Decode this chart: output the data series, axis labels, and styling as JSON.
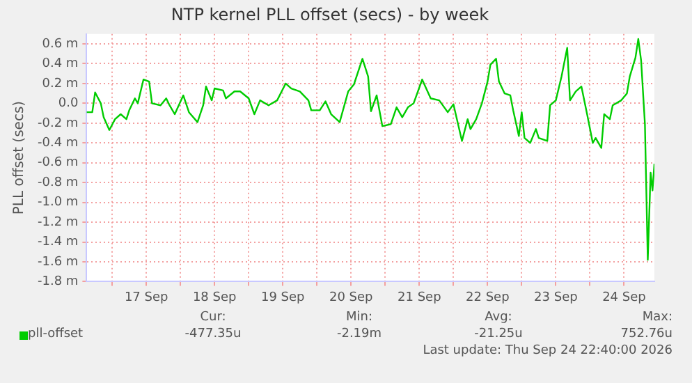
{
  "chart_data": {
    "type": "line",
    "title": "NTP kernel PLL offset (secs) - by week",
    "ylabel": "PLL offset (secs)",
    "xlim": [
      "2026-09-16T15:00",
      "2026-09-24T22:40"
    ],
    "xticks": [
      {
        "value": "2026-09-17T00:00",
        "label": null
      },
      {
        "value": "2026-09-17T12:00",
        "label": "17 Sep"
      },
      {
        "value": "2026-09-18T00:00",
        "label": null
      },
      {
        "value": "2026-09-18T12:00",
        "label": "18 Sep"
      },
      {
        "value": "2026-09-19T00:00",
        "label": null
      },
      {
        "value": "2026-09-19T12:00",
        "label": "19 Sep"
      },
      {
        "value": "2026-09-20T00:00",
        "label": null
      },
      {
        "value": "2026-09-20T12:00",
        "label": "20 Sep"
      },
      {
        "value": "2026-09-21T00:00",
        "label": null
      },
      {
        "value": "2026-09-21T12:00",
        "label": "21 Sep"
      },
      {
        "value": "2026-09-22T00:00",
        "label": null
      },
      {
        "value": "2026-09-22T12:00",
        "label": "22 Sep"
      },
      {
        "value": "2026-09-23T00:00",
        "label": null
      },
      {
        "value": "2026-09-23T12:00",
        "label": "23 Sep"
      },
      {
        "value": "2026-09-24T00:00",
        "label": null
      },
      {
        "value": "2026-09-24T12:00",
        "label": "24 Sep"
      }
    ],
    "ylim": [
      -1.8,
      0.7
    ],
    "yticks": [
      {
        "value": 0.6,
        "label": "0.6 m"
      },
      {
        "value": 0.4,
        "label": "0.4 m"
      },
      {
        "value": 0.2,
        "label": "0.2 m"
      },
      {
        "value": 0,
        "label": "0.0"
      },
      {
        "value": -0.2,
        "label": "-0.2 m"
      },
      {
        "value": -0.4,
        "label": "-0.4 m"
      },
      {
        "value": -0.6,
        "label": "-0.6 m"
      },
      {
        "value": -0.8,
        "label": "-0.8 m"
      },
      {
        "value": -1.0,
        "label": "-1.0 m"
      },
      {
        "value": -1.2,
        "label": "-1.2 m"
      },
      {
        "value": -1.4,
        "label": "-1.4 m"
      },
      {
        "value": -1.6,
        "label": "-1.6 m"
      },
      {
        "value": -1.8,
        "label": "-1.8 m"
      }
    ],
    "grid": true,
    "legend": "bottom",
    "marker": "none",
    "annotations": [
      "Cur:",
      "Min:",
      "Avg:",
      "Max:",
      "-477.35u",
      "-2.19m",
      "-21.25u",
      "752.76u",
      "Last update: Thu Sep 24 22:40:00 2026"
    ],
    "series": [
      {
        "name": "pll-offset",
        "color": "#00cc00",
        "x": [
          "2026-09-16T15:00",
          "2026-09-16T17:00",
          "2026-09-16T18:00",
          "2026-09-16T20:00",
          "2026-09-16T21:00",
          "2026-09-16T23:00",
          "2026-09-17T01:00",
          "2026-09-17T03:00",
          "2026-09-17T05:00",
          "2026-09-17T06:00",
          "2026-09-17T08:00",
          "2026-09-17T09:00",
          "2026-09-17T11:00",
          "2026-09-17T13:00",
          "2026-09-17T14:00",
          "2026-09-17T17:00",
          "2026-09-17T19:00",
          "2026-09-17T20:00",
          "2026-09-17T22:00",
          "2026-09-18T01:00",
          "2026-09-18T03:00",
          "2026-09-18T06:00",
          "2026-09-18T08:00",
          "2026-09-18T09:00",
          "2026-09-18T11:00",
          "2026-09-18T12:00",
          "2026-09-18T15:00",
          "2026-09-18T16:00",
          "2026-09-18T19:00",
          "2026-09-18T21:00",
          "2026-09-19T00:00",
          "2026-09-19T02:00",
          "2026-09-19T04:00",
          "2026-09-19T07:00",
          "2026-09-19T10:00",
          "2026-09-19T13:00",
          "2026-09-19T15:00",
          "2026-09-19T18:00",
          "2026-09-19T21:00",
          "2026-09-19T22:00",
          "2026-09-20T01:00",
          "2026-09-20T03:00",
          "2026-09-20T05:00",
          "2026-09-20T08:00",
          "2026-09-20T11:00",
          "2026-09-20T13:00",
          "2026-09-20T16:00",
          "2026-09-20T18:00",
          "2026-09-20T19:00",
          "2026-09-20T21:00",
          "2026-09-20T23:00",
          "2026-09-21T02:00",
          "2026-09-21T04:00",
          "2026-09-21T06:00",
          "2026-09-21T08:00",
          "2026-09-21T10:00",
          "2026-09-21T13:00",
          "2026-09-21T16:00",
          "2026-09-21T19:00",
          "2026-09-21T22:00",
          "2026-09-22T00:00",
          "2026-09-22T03:00",
          "2026-09-22T05:00",
          "2026-09-22T06:00",
          "2026-09-22T08:00",
          "2026-09-22T10:00",
          "2026-09-22T12:00",
          "2026-09-22T13:00",
          "2026-09-22T15:00",
          "2026-09-22T16:00",
          "2026-09-22T18:00",
          "2026-09-22T20:00",
          "2026-09-22T21:00",
          "2026-09-22T23:00",
          "2026-09-23T00:00",
          "2026-09-23T01:00",
          "2026-09-23T03:00",
          "2026-09-23T05:00",
          "2026-09-23T06:00",
          "2026-09-23T09:00",
          "2026-09-23T10:00",
          "2026-09-23T12:00",
          "2026-09-23T14:00",
          "2026-09-23T16:00",
          "2026-09-23T17:00",
          "2026-09-23T19:00",
          "2026-09-23T21:00",
          "2026-09-23T23:00",
          "2026-09-24T01:00",
          "2026-09-24T02:00",
          "2026-09-24T04:00",
          "2026-09-24T05:00",
          "2026-09-24T07:00",
          "2026-09-24T08:00",
          "2026-09-24T11:00",
          "2026-09-24T13:00",
          "2026-09-24T14:00",
          "2026-09-24T16:00",
          "2026-09-24T17:00",
          "2026-09-24T18:00",
          "2026-09-24T19:20",
          "2026-09-24T20:20",
          "2026-09-24T21:20",
          "2026-09-24T22:00",
          "2026-09-24T22:40"
        ],
        "values": [
          -0.09,
          -0.09,
          0.11,
          0,
          -0.14,
          -0.27,
          -0.16,
          -0.11,
          -0.16,
          -0.07,
          0.05,
          0,
          0.24,
          0.22,
          0,
          -0.02,
          0.05,
          -0.01,
          -0.11,
          0.08,
          -0.09,
          -0.19,
          -0.02,
          0.17,
          0.03,
          0.15,
          0.13,
          0.05,
          0.12,
          0.12,
          0.05,
          -0.11,
          0.03,
          -0.02,
          0.03,
          0.2,
          0.15,
          0.12,
          0.03,
          -0.07,
          -0.07,
          0.02,
          -0.11,
          -0.19,
          0.12,
          0.19,
          0.45,
          0.27,
          -0.08,
          0.08,
          -0.23,
          -0.21,
          -0.04,
          -0.14,
          -0.04,
          0,
          0.24,
          0.05,
          0.03,
          -0.09,
          -0.01,
          -0.38,
          -0.16,
          -0.26,
          -0.16,
          0,
          0.22,
          0.39,
          0.45,
          0.22,
          0.1,
          0.08,
          -0.07,
          -0.33,
          -0.09,
          -0.35,
          -0.4,
          -0.26,
          -0.35,
          -0.38,
          -0.02,
          0.03,
          0.27,
          0.56,
          0.03,
          0.12,
          0.17,
          -0.11,
          -0.4,
          -0.35,
          -0.45,
          -0.11,
          -0.16,
          -0.02,
          0.03,
          0.1,
          0.27,
          0.46,
          0.65,
          0.43,
          -0.21,
          -1.58,
          -0.7,
          -0.88,
          -0.61
        ]
      }
    ]
  }
}
